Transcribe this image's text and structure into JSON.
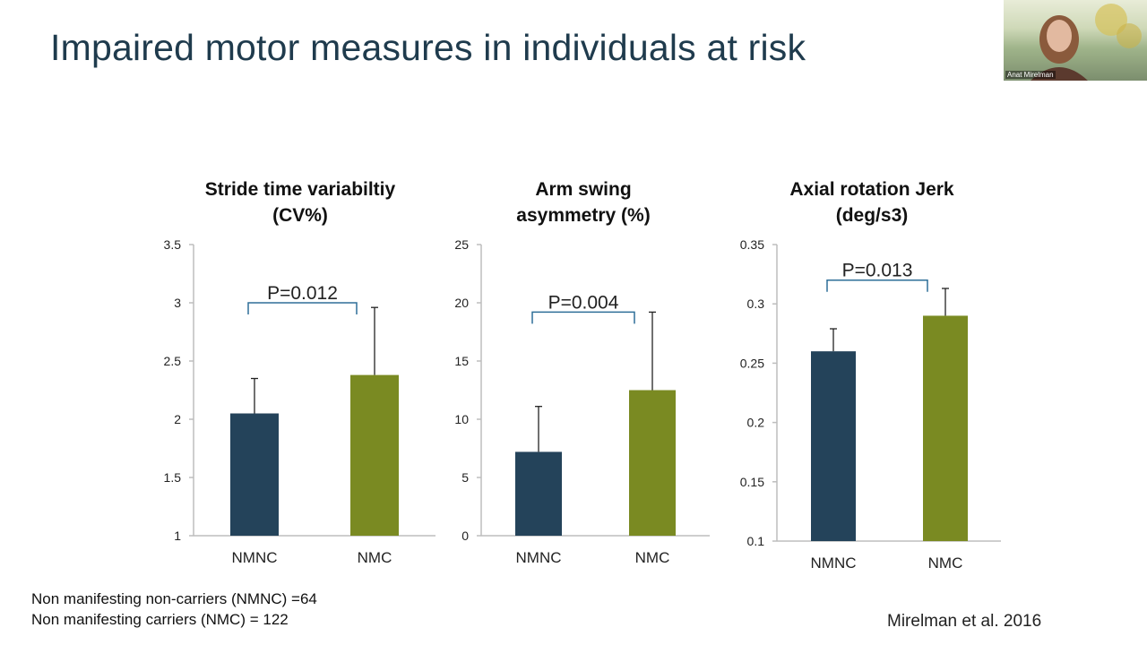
{
  "slide": {
    "title": "Impaired motor measures in individuals at risk"
  },
  "legend": {
    "line1": "Non manifesting non-carriers (NMNC) =64",
    "line2": "Non manifesting carriers (NMC) = 122"
  },
  "citation": "Mirelman et al. 2016",
  "video": {
    "participant_name": "Anat Mirelman"
  },
  "colors": {
    "nmnc": "#24435a",
    "nmc": "#7a8a22",
    "bracket": "#2e6f98",
    "axis": "#bdbdbd"
  },
  "chart_data": [
    {
      "type": "bar",
      "title_lines": [
        "Stride time variabiltiy",
        "(CV%)"
      ],
      "categories": [
        "NMNC",
        "NMC"
      ],
      "values": [
        2.05,
        2.38
      ],
      "error_upper": [
        0.3,
        0.58
      ],
      "ylim": [
        1,
        3.5
      ],
      "ticks": [
        1,
        1.5,
        2,
        2.5,
        3,
        3.5
      ],
      "tick_labels": [
        "1",
        "1.5",
        "2",
        "2.5",
        "3",
        "3.5"
      ],
      "p_value": "P=0.012",
      "bracket_y": 3.0
    },
    {
      "type": "bar",
      "title_lines": [
        "Arm swing",
        "asymmetry (%)"
      ],
      "categories": [
        "NMNC",
        "NMC"
      ],
      "values": [
        7.2,
        12.5
      ],
      "error_upper": [
        3.9,
        6.7
      ],
      "ylim": [
        0,
        25
      ],
      "ticks": [
        0,
        5,
        10,
        15,
        20,
        25
      ],
      "tick_labels": [
        "0",
        "5",
        "10",
        "15",
        "20",
        "25"
      ],
      "p_value": "P=0.004",
      "bracket_y": 19.2
    },
    {
      "type": "bar",
      "title_lines": [
        "Axial rotation Jerk",
        "(deg/s3)"
      ],
      "categories": [
        "NMNC",
        "NMC"
      ],
      "values": [
        0.26,
        0.29
      ],
      "error_upper": [
        0.019,
        0.023
      ],
      "ylim": [
        0.1,
        0.35
      ],
      "ticks": [
        0.1,
        0.15,
        0.2,
        0.25,
        0.3,
        0.35
      ],
      "tick_labels": [
        "0.1",
        "0.15",
        "0.2",
        "0.25",
        "0.3",
        "0.35"
      ],
      "p_value": "P=0.013",
      "bracket_y": 0.32
    }
  ]
}
